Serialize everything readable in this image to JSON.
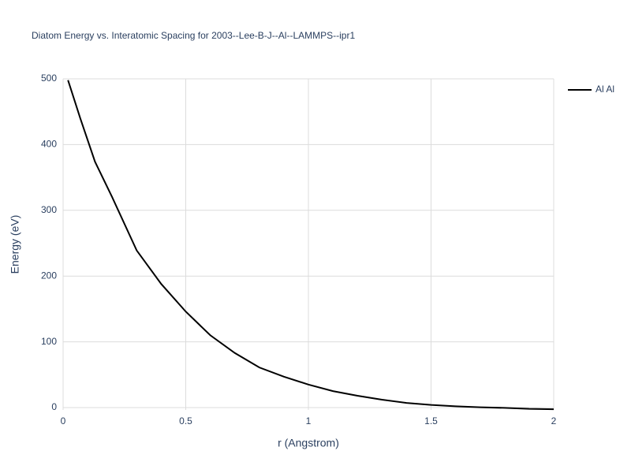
{
  "chart_data": {
    "type": "line",
    "title": "Diatom Energy vs. Interatomic Spacing for 2003--Lee-B-J--Al--LAMMPS--ipr1",
    "x_label": "r (Angstrom)",
    "y_label": "Energy (eV)",
    "x": [
      0.02,
      0.07,
      0.13,
      0.2,
      0.3,
      0.4,
      0.5,
      0.6,
      0.7,
      0.8,
      0.9,
      1.0,
      1.1,
      1.2,
      1.3,
      1.4,
      1.5,
      1.6,
      1.7,
      1.8,
      1.9,
      2.0
    ],
    "series": [
      {
        "name": "Al Al",
        "color": "#000000",
        "values": [
          498,
          440,
          374,
          320,
          239,
          188,
          146,
          110,
          83,
          61,
          47,
          35,
          25,
          18,
          12,
          7,
          4,
          2,
          0.5,
          -0.5,
          -2,
          -2.5
        ]
      }
    ],
    "xlim": [
      0,
      2
    ],
    "ylim": [
      -3.6,
      500
    ],
    "xticks": [
      0,
      0.5,
      1,
      1.5,
      2
    ],
    "yticks": [
      0,
      100,
      200,
      300,
      400,
      500
    ],
    "grid": true,
    "legend": "right"
  }
}
